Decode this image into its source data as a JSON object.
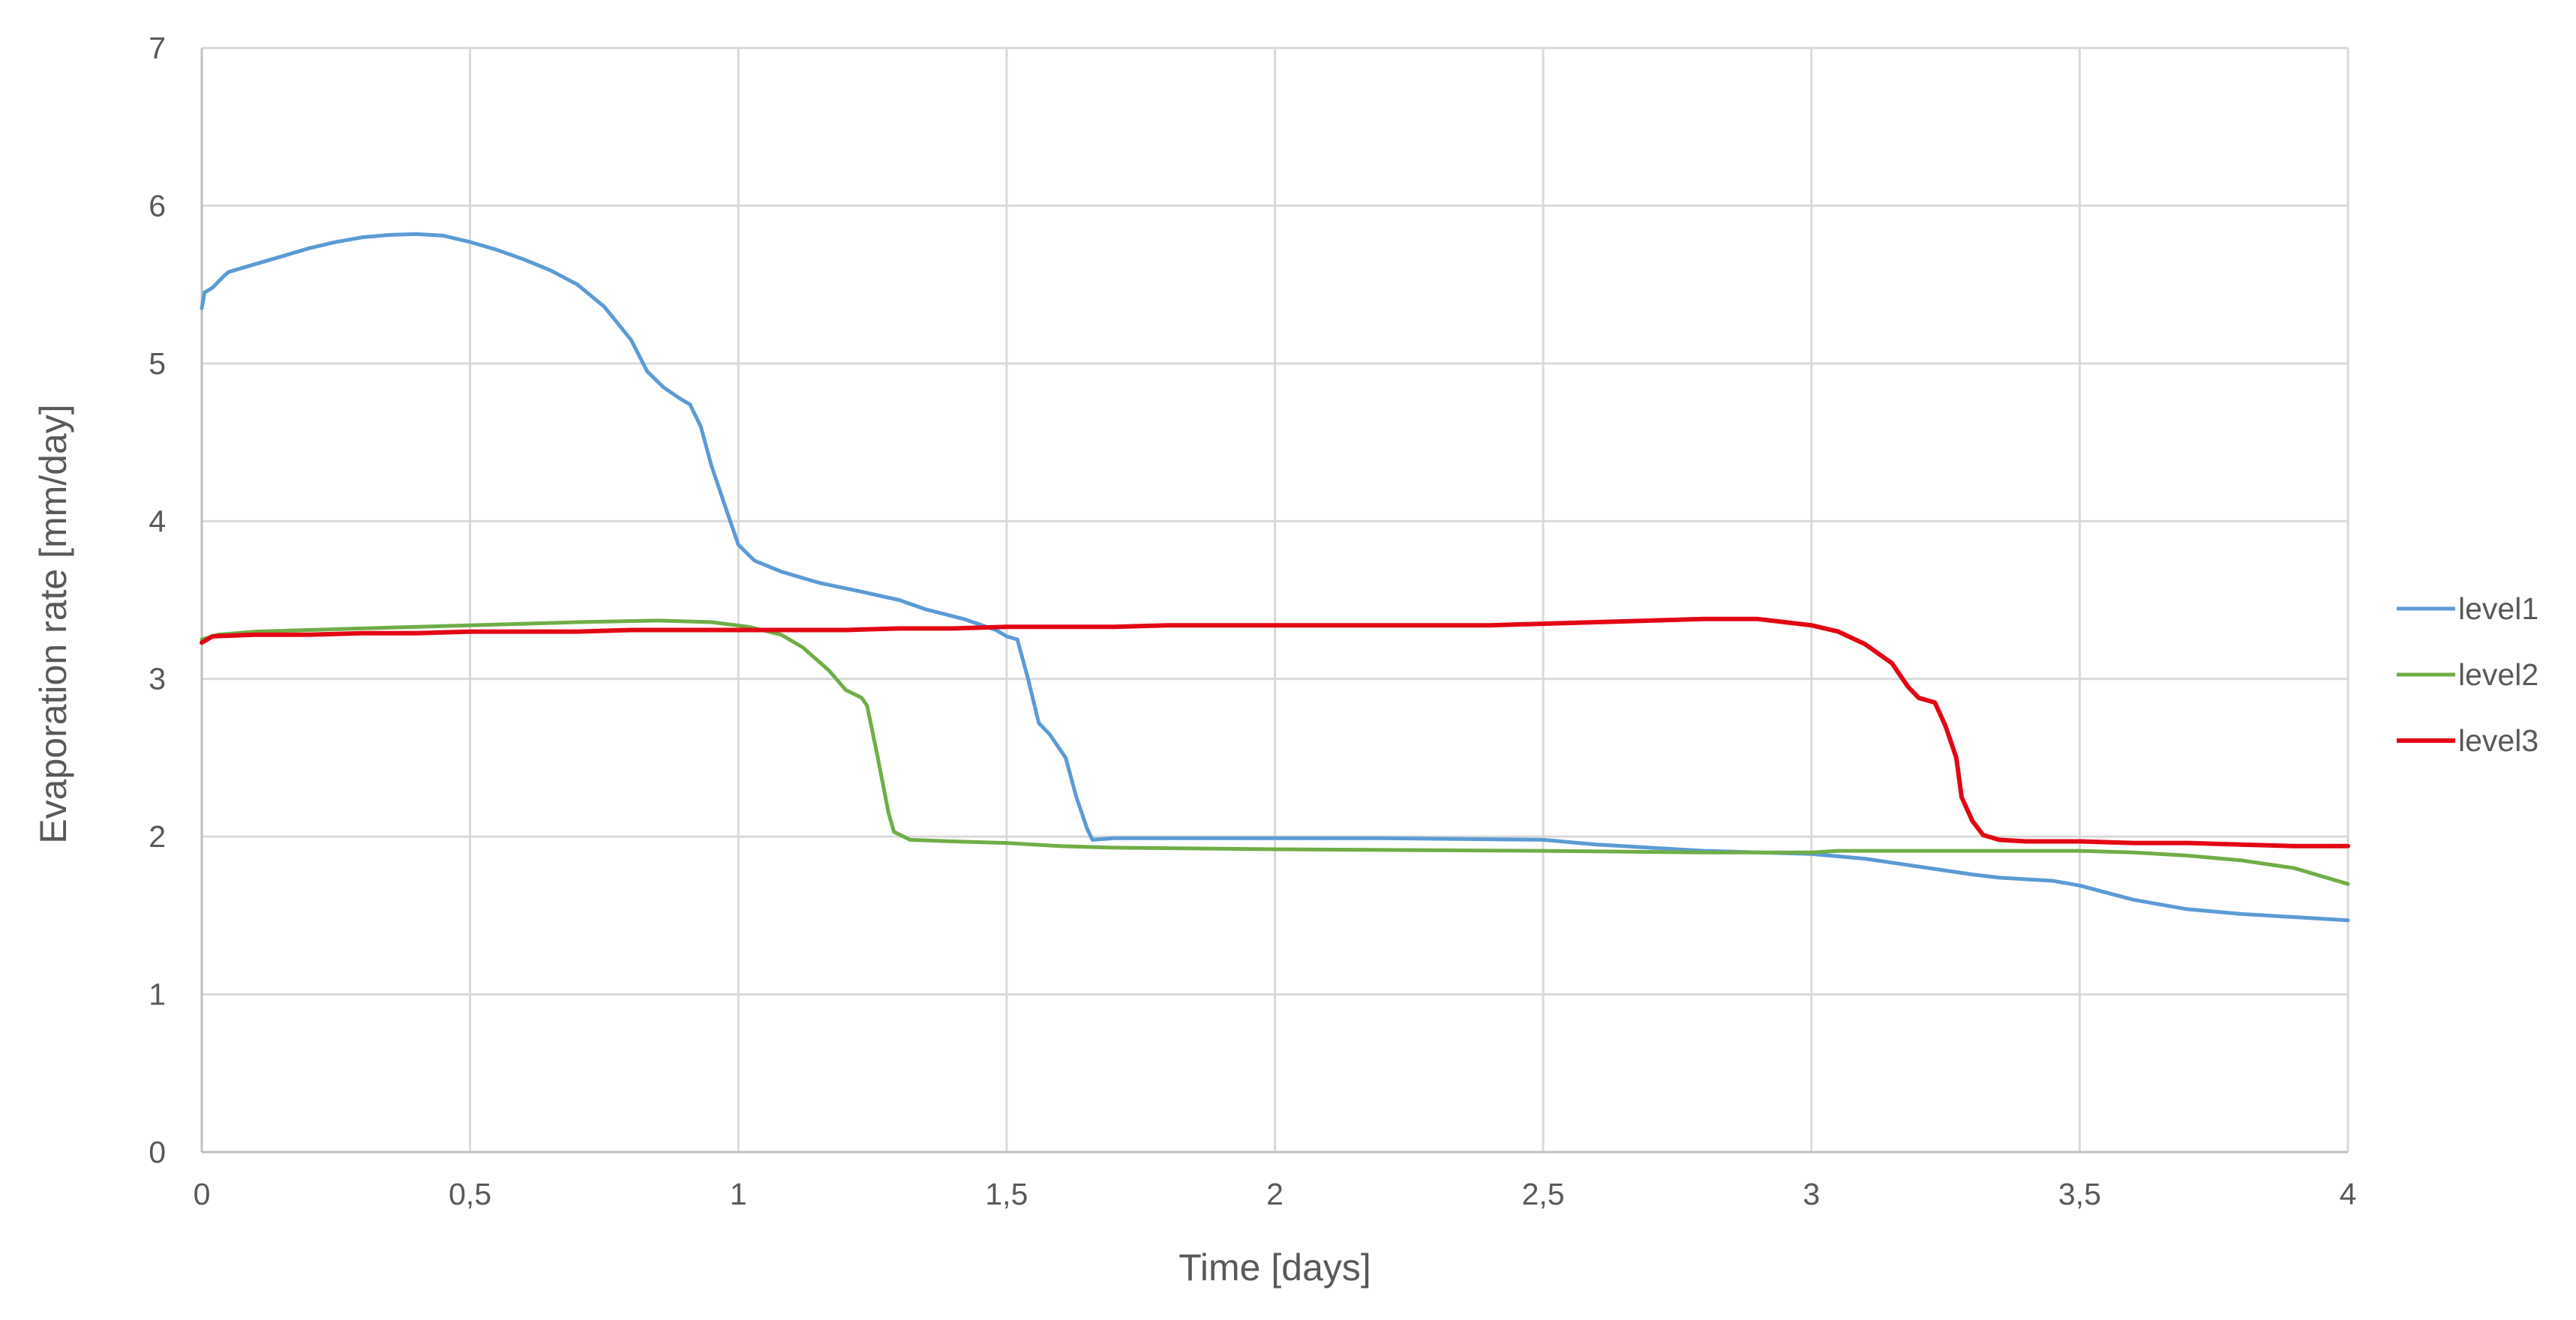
{
  "chart_data": {
    "type": "line",
    "xlabel": "Time [days]",
    "ylabel": "Evaporation rate [mm/day]",
    "xlim": [
      0,
      4
    ],
    "ylim": [
      0,
      7
    ],
    "x_ticks": [
      0,
      0.5,
      1,
      1.5,
      2,
      2.5,
      3,
      3.5,
      4
    ],
    "x_tick_labels": [
      "0",
      "0,5",
      "1",
      "1,5",
      "2",
      "2,5",
      "3",
      "3,5",
      "4"
    ],
    "y_ticks": [
      0,
      1,
      2,
      3,
      4,
      5,
      6,
      7
    ],
    "y_tick_labels": [
      "0",
      "1",
      "2",
      "3",
      "4",
      "5",
      "6",
      "7"
    ],
    "grid": true,
    "legend_position": "right",
    "series": [
      {
        "name": "level1",
        "color": "#5b9bd5",
        "points": [
          [
            0,
            5.35
          ],
          [
            0.005,
            5.45
          ],
          [
            0.02,
            5.48
          ],
          [
            0.04,
            5.55
          ],
          [
            0.05,
            5.58
          ],
          [
            0.1,
            5.63
          ],
          [
            0.15,
            5.68
          ],
          [
            0.2,
            5.73
          ],
          [
            0.25,
            5.77
          ],
          [
            0.3,
            5.8
          ],
          [
            0.35,
            5.815
          ],
          [
            0.4,
            5.82
          ],
          [
            0.45,
            5.81
          ],
          [
            0.5,
            5.77
          ],
          [
            0.55,
            5.72
          ],
          [
            0.6,
            5.66
          ],
          [
            0.65,
            5.59
          ],
          [
            0.7,
            5.5
          ],
          [
            0.75,
            5.36
          ],
          [
            0.8,
            5.15
          ],
          [
            0.83,
            4.95
          ],
          [
            0.86,
            4.85
          ],
          [
            0.89,
            4.78
          ],
          [
            0.91,
            4.74
          ],
          [
            0.93,
            4.6
          ],
          [
            0.95,
            4.35
          ],
          [
            0.98,
            4.05
          ],
          [
            1.0,
            3.85
          ],
          [
            1.03,
            3.75
          ],
          [
            1.08,
            3.68
          ],
          [
            1.15,
            3.61
          ],
          [
            1.22,
            3.56
          ],
          [
            1.3,
            3.5
          ],
          [
            1.35,
            3.44
          ],
          [
            1.42,
            3.38
          ],
          [
            1.48,
            3.31
          ],
          [
            1.5,
            3.27
          ],
          [
            1.52,
            3.25
          ],
          [
            1.54,
            3.0
          ],
          [
            1.56,
            2.72
          ],
          [
            1.58,
            2.65
          ],
          [
            1.61,
            2.5
          ],
          [
            1.63,
            2.25
          ],
          [
            1.65,
            2.05
          ],
          [
            1.66,
            1.98
          ],
          [
            1.7,
            1.99
          ],
          [
            2.0,
            1.99
          ],
          [
            2.2,
            1.99
          ],
          [
            2.5,
            1.98
          ],
          [
            2.6,
            1.95
          ],
          [
            2.8,
            1.91
          ],
          [
            3.0,
            1.89
          ],
          [
            3.1,
            1.86
          ],
          [
            3.2,
            1.81
          ],
          [
            3.3,
            1.76
          ],
          [
            3.35,
            1.74
          ],
          [
            3.45,
            1.72
          ],
          [
            3.5,
            1.69
          ],
          [
            3.6,
            1.6
          ],
          [
            3.7,
            1.54
          ],
          [
            3.8,
            1.51
          ],
          [
            3.9,
            1.49
          ],
          [
            4.0,
            1.47
          ]
        ]
      },
      {
        "name": "level2",
        "color": "#70ad47",
        "points": [
          [
            0,
            3.25
          ],
          [
            0.03,
            3.28
          ],
          [
            0.1,
            3.3
          ],
          [
            0.3,
            3.32
          ],
          [
            0.5,
            3.34
          ],
          [
            0.7,
            3.36
          ],
          [
            0.85,
            3.37
          ],
          [
            0.95,
            3.36
          ],
          [
            1.02,
            3.33
          ],
          [
            1.08,
            3.28
          ],
          [
            1.12,
            3.2
          ],
          [
            1.17,
            3.05
          ],
          [
            1.2,
            2.93
          ],
          [
            1.23,
            2.88
          ],
          [
            1.24,
            2.83
          ],
          [
            1.26,
            2.5
          ],
          [
            1.28,
            2.15
          ],
          [
            1.29,
            2.03
          ],
          [
            1.32,
            1.98
          ],
          [
            1.4,
            1.97
          ],
          [
            1.5,
            1.96
          ],
          [
            1.6,
            1.94
          ],
          [
            1.7,
            1.93
          ],
          [
            2.0,
            1.92
          ],
          [
            2.5,
            1.91
          ],
          [
            2.8,
            1.9
          ],
          [
            3.0,
            1.9
          ],
          [
            3.05,
            1.91
          ],
          [
            3.2,
            1.91
          ],
          [
            3.4,
            1.91
          ],
          [
            3.5,
            1.91
          ],
          [
            3.6,
            1.9
          ],
          [
            3.7,
            1.88
          ],
          [
            3.8,
            1.85
          ],
          [
            3.9,
            1.8
          ],
          [
            4.0,
            1.7
          ]
        ]
      },
      {
        "name": "level3",
        "color": "#e30613",
        "points": [
          [
            0,
            3.23
          ],
          [
            0.02,
            3.27
          ],
          [
            0.1,
            3.28
          ],
          [
            0.2,
            3.28
          ],
          [
            0.3,
            3.29
          ],
          [
            0.4,
            3.29
          ],
          [
            0.5,
            3.3
          ],
          [
            0.6,
            3.3
          ],
          [
            0.7,
            3.3
          ],
          [
            0.8,
            3.31
          ],
          [
            0.9,
            3.31
          ],
          [
            1.0,
            3.31
          ],
          [
            1.1,
            3.31
          ],
          [
            1.2,
            3.31
          ],
          [
            1.3,
            3.32
          ],
          [
            1.4,
            3.32
          ],
          [
            1.5,
            3.33
          ],
          [
            1.7,
            3.33
          ],
          [
            1.8,
            3.34
          ],
          [
            2.0,
            3.34
          ],
          [
            2.2,
            3.34
          ],
          [
            2.4,
            3.34
          ],
          [
            2.5,
            3.35
          ],
          [
            2.6,
            3.36
          ],
          [
            2.7,
            3.37
          ],
          [
            2.8,
            3.38
          ],
          [
            2.9,
            3.38
          ],
          [
            2.95,
            3.36
          ],
          [
            3.0,
            3.34
          ],
          [
            3.05,
            3.3
          ],
          [
            3.1,
            3.22
          ],
          [
            3.15,
            3.1
          ],
          [
            3.18,
            2.95
          ],
          [
            3.2,
            2.88
          ],
          [
            3.23,
            2.85
          ],
          [
            3.25,
            2.7
          ],
          [
            3.27,
            2.5
          ],
          [
            3.28,
            2.25
          ],
          [
            3.3,
            2.1
          ],
          [
            3.32,
            2.01
          ],
          [
            3.35,
            1.98
          ],
          [
            3.4,
            1.97
          ],
          [
            3.5,
            1.97
          ],
          [
            3.6,
            1.96
          ],
          [
            3.7,
            1.96
          ],
          [
            3.8,
            1.95
          ],
          [
            3.9,
            1.94
          ],
          [
            4.0,
            1.94
          ]
        ]
      }
    ]
  }
}
